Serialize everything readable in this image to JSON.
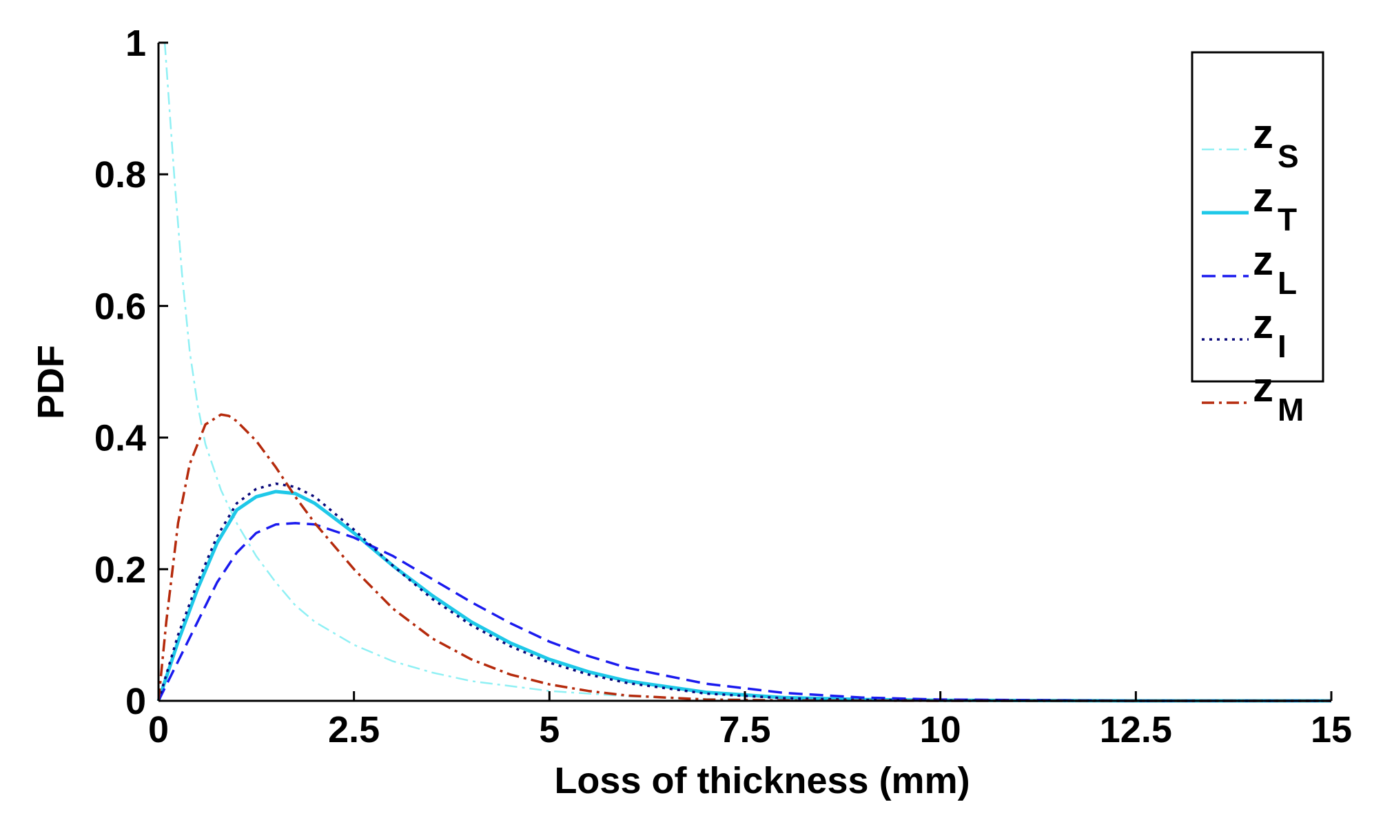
{
  "chart_data": {
    "type": "line",
    "title": "",
    "xlabel": "Loss of thickness (mm)",
    "ylabel": "PDF",
    "xlim": [
      0,
      15
    ],
    "ylim": [
      0,
      1
    ],
    "xticks": [
      0,
      2.5,
      5,
      7.5,
      10,
      12.5,
      15
    ],
    "xtick_labels": [
      "0",
      "2.5",
      "5",
      "7.5",
      "10",
      "12.5",
      "15"
    ],
    "yticks": [
      0,
      0.2,
      0.4,
      0.6,
      0.8,
      1
    ],
    "ytick_labels": [
      "0",
      "0.2",
      "0.4",
      "0.6",
      "0.8",
      "1"
    ],
    "grid": false,
    "legend_position": "top-right",
    "series": [
      {
        "name": "z",
        "subscript": "S",
        "color": "#8ff0f4",
        "style": "dash-dot",
        "width": 2.5,
        "x": [
          0.08,
          0.2,
          0.3,
          0.4,
          0.5,
          0.6,
          0.8,
          1.0,
          1.25,
          1.5,
          1.75,
          2.0,
          2.5,
          3.0,
          3.5,
          4.0,
          5.0,
          6.0,
          7.0,
          8.0,
          10.0,
          12.5,
          15.0
        ],
        "y": [
          1.0,
          0.8,
          0.65,
          0.53,
          0.45,
          0.39,
          0.32,
          0.27,
          0.22,
          0.18,
          0.145,
          0.12,
          0.085,
          0.06,
          0.043,
          0.03,
          0.015,
          0.007,
          0.003,
          0.0015,
          0.0003,
          0.0,
          0.0
        ]
      },
      {
        "name": "z",
        "subscript": "T",
        "color": "#1ec8e8",
        "style": "solid",
        "width": 5,
        "x": [
          0,
          0.25,
          0.5,
          0.75,
          1.0,
          1.25,
          1.5,
          1.75,
          2.0,
          2.5,
          3.0,
          3.5,
          4.0,
          4.5,
          5.0,
          5.5,
          6.0,
          7.0,
          8.0,
          9.0,
          10.0,
          12.5,
          15.0
        ],
        "y": [
          0,
          0.09,
          0.17,
          0.24,
          0.29,
          0.31,
          0.318,
          0.315,
          0.3,
          0.255,
          0.205,
          0.16,
          0.12,
          0.088,
          0.063,
          0.044,
          0.03,
          0.013,
          0.005,
          0.002,
          0.0008,
          0.0,
          0.0
        ]
      },
      {
        "name": "z",
        "subscript": "L",
        "color": "#1a1aee",
        "style": "dashed",
        "width": 3.5,
        "x": [
          0,
          0.25,
          0.5,
          0.75,
          1.0,
          1.25,
          1.5,
          1.75,
          2.0,
          2.5,
          3.0,
          3.5,
          4.0,
          4.5,
          5.0,
          5.5,
          6.0,
          7.0,
          8.0,
          9.0,
          10.0,
          12.5,
          15.0
        ],
        "y": [
          0,
          0.06,
          0.12,
          0.18,
          0.225,
          0.255,
          0.268,
          0.27,
          0.268,
          0.248,
          0.22,
          0.185,
          0.15,
          0.118,
          0.09,
          0.068,
          0.05,
          0.026,
          0.012,
          0.005,
          0.002,
          0.0,
          0.0
        ]
      },
      {
        "name": "z",
        "subscript": "I",
        "color": "#08087a",
        "style": "dotted",
        "width": 3.5,
        "x": [
          0,
          0.25,
          0.5,
          0.75,
          1.0,
          1.25,
          1.5,
          1.75,
          2.0,
          2.5,
          3.0,
          3.5,
          4.0,
          4.5,
          5.0,
          5.5,
          6.0,
          7.0,
          8.0,
          9.0,
          10.0,
          12.5,
          15.0
        ],
        "y": [
          0,
          0.1,
          0.18,
          0.25,
          0.3,
          0.322,
          0.33,
          0.325,
          0.31,
          0.26,
          0.205,
          0.155,
          0.115,
          0.083,
          0.058,
          0.04,
          0.027,
          0.011,
          0.004,
          0.0015,
          0.0005,
          0.0,
          0.0
        ]
      },
      {
        "name": "z",
        "subscript": "M",
        "color": "#b52a0c",
        "style": "dash-dot",
        "width": 3.5,
        "x": [
          0,
          0.1,
          0.25,
          0.4,
          0.6,
          0.8,
          0.9,
          1.0,
          1.25,
          1.5,
          1.75,
          2.0,
          2.5,
          3.0,
          3.5,
          4.0,
          4.5,
          5.0,
          5.5,
          6.0,
          7.0,
          8.0,
          10.0,
          15.0
        ],
        "y": [
          0,
          0.12,
          0.27,
          0.36,
          0.42,
          0.435,
          0.433,
          0.425,
          0.395,
          0.355,
          0.31,
          0.27,
          0.2,
          0.14,
          0.095,
          0.063,
          0.04,
          0.025,
          0.015,
          0.008,
          0.002,
          0.0006,
          0.0,
          0.0
        ]
      }
    ]
  }
}
